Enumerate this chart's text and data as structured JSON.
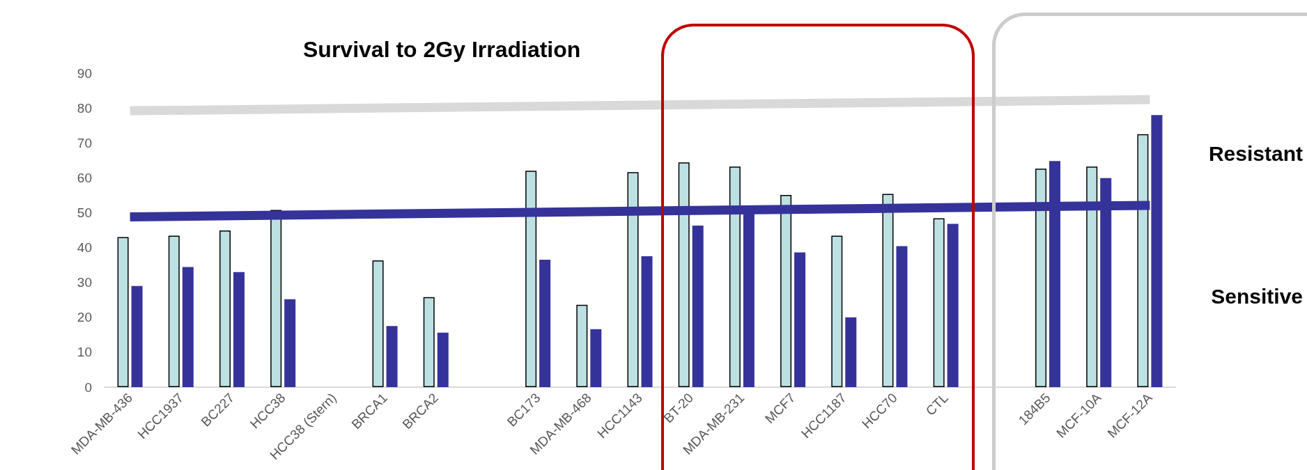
{
  "chart_data": {
    "type": "bar",
    "title": "Survival to 2Gy Irradiation",
    "categories": [
      "MDA-MB-436",
      "HCC1937",
      "BC227",
      "HCC38",
      "HCC38 (Stern)",
      "BRCA1",
      "BRCA2",
      null,
      "BC173",
      "MDA-MB-468",
      "HCC1143",
      "BT-20",
      "MDA-MB-231",
      "MCF7",
      "HCC1187",
      "HCC70",
      "CTL",
      null,
      "184B5",
      "MCF-10A",
      "MCF-12A"
    ],
    "series": [
      {
        "color": "#bde0e3",
        "values": [
          43,
          43.4,
          44.9,
          50.8,
          null,
          36.3,
          25.8,
          null,
          62,
          23.6,
          61.6,
          64.4,
          63.2,
          55.1,
          43.4,
          55.4,
          48.4,
          null,
          62.6,
          63.2,
          72.5
        ]
      },
      {
        "color": "#35339a",
        "values": [
          29,
          34.4,
          33,
          25.2,
          null,
          17.5,
          15.6,
          null,
          36.5,
          16.6,
          37.5,
          46.3,
          50.5,
          38.6,
          20,
          40.4,
          46.8,
          null,
          64.8,
          59.9,
          78
        ]
      },
      {
        "type": "line",
        "color": "#d9d9d9",
        "values": [
          79.2,
          null,
          null,
          null,
          null,
          null,
          null,
          null,
          null,
          null,
          null,
          null,
          null,
          null,
          null,
          null,
          null,
          null,
          null,
          null,
          82.4
        ]
      },
      {
        "type": "line",
        "color": "#35339a",
        "values": [
          48.8,
          null,
          null,
          null,
          null,
          null,
          null,
          null,
          null,
          null,
          null,
          null,
          null,
          null,
          null,
          null,
          null,
          null,
          null,
          null,
          52.1
        ]
      }
    ],
    "ylim": [
      0,
      90
    ],
    "yticks": [
      0,
      10,
      20,
      30,
      40,
      50,
      60,
      70,
      80,
      90
    ],
    "grid": false,
    "marker": "none",
    "annotations": [
      "Resistant",
      "Sensitive"
    ]
  }
}
